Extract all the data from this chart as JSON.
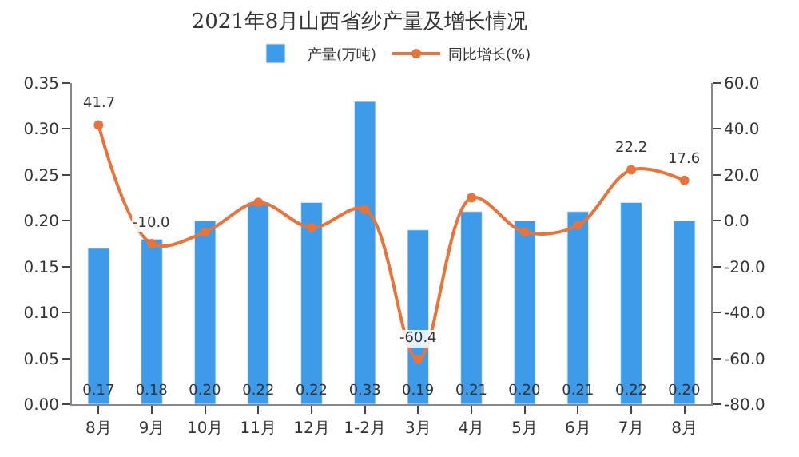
{
  "chart_data": {
    "type": "bar",
    "title": "2021年8月山西省纱产量及增长情况",
    "categories": [
      "8月",
      "9月",
      "10月",
      "11月",
      "12月",
      "1-2月",
      "3月",
      "4月",
      "5月",
      "6月",
      "7月",
      "8月"
    ],
    "series": [
      {
        "name": "产量(万吨)",
        "color": "#3d9be9",
        "values": [
          0.17,
          0.18,
          0.2,
          0.22,
          0.22,
          0.33,
          0.19,
          0.21,
          0.2,
          0.21,
          0.22,
          0.2
        ],
        "value_labels": [
          "0.17",
          "0.18",
          "0.20",
          "0.22",
          "0.22",
          "0.33",
          "0.19",
          "0.21",
          "0.20",
          "0.21",
          "0.22",
          "0.20"
        ]
      },
      {
        "name": "同比增长(%)",
        "type": "line",
        "axis": "y2",
        "color": "#e8743b",
        "marker": "circle",
        "values": [
          41.7,
          -10.0,
          -5,
          8,
          -3,
          5,
          -60.4,
          10,
          -5,
          -2,
          22.2,
          17.6
        ],
        "value_labels": [
          "41.7",
          "-10.0",
          null,
          null,
          null,
          null,
          "-60.4",
          null,
          null,
          null,
          "22.2",
          "17.6"
        ]
      }
    ],
    "ylim": [
      0,
      0.35
    ],
    "yticks": [
      {
        "value": 0,
        "label": "0.00"
      },
      {
        "value": 0.05,
        "label": "0.05"
      },
      {
        "value": 0.1,
        "label": "0.10"
      },
      {
        "value": 0.15,
        "label": "0.15"
      },
      {
        "value": 0.2,
        "label": "0.20"
      },
      {
        "value": 0.25,
        "label": "0.25"
      },
      {
        "value": 0.3,
        "label": "0.30"
      },
      {
        "value": 0.35,
        "label": "0.35"
      }
    ],
    "y2lim": [
      -80,
      60
    ],
    "y2ticks": [
      {
        "value": -80,
        "label": "-80.0"
      },
      {
        "value": -60,
        "label": "-60.0"
      },
      {
        "value": -40,
        "label": "-40.0"
      },
      {
        "value": -20,
        "label": "-20.0"
      },
      {
        "value": 0,
        "label": "0.0"
      },
      {
        "value": 20,
        "label": "20.0"
      },
      {
        "value": 40,
        "label": "40.0"
      },
      {
        "value": 60,
        "label": "60.0"
      }
    ],
    "legend": "top"
  }
}
